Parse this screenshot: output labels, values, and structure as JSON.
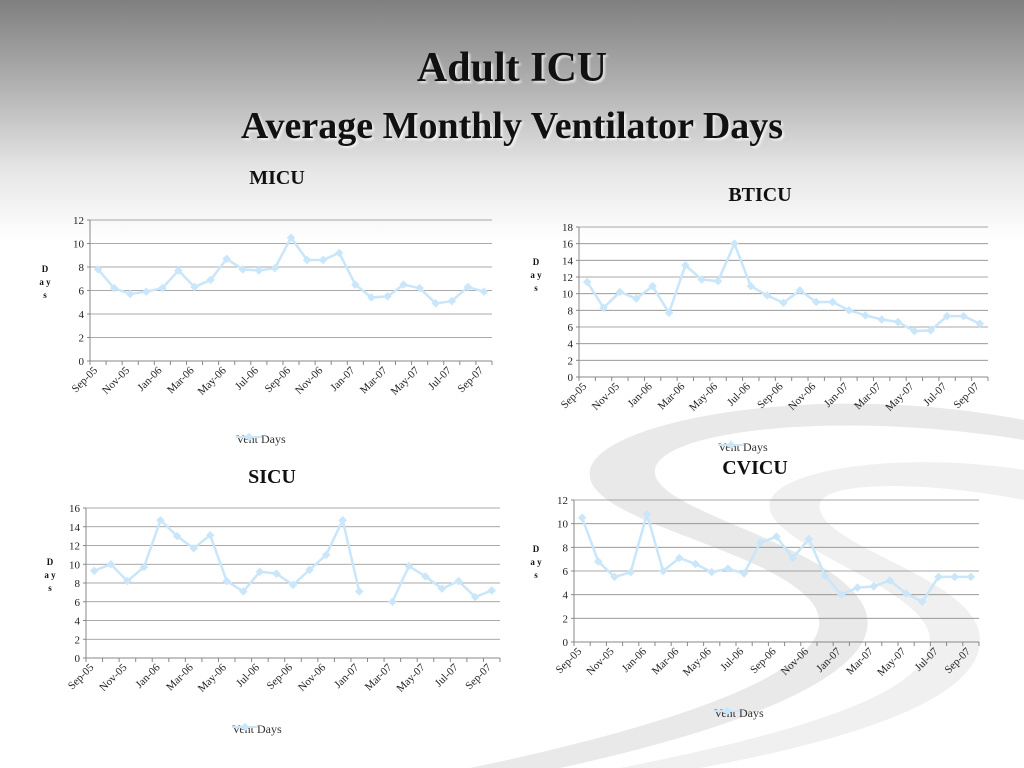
{
  "title": "Adult ICU",
  "subtitle": "Average Monthly Ventilator Days",
  "series_color": "#c9e6fa",
  "chart_data": [
    {
      "type": "line",
      "title": "MICU",
      "ylabel": "D a y s",
      "legend": "Vent Days",
      "legend_position": "bottom",
      "grid": true,
      "ylim": [
        0,
        12
      ],
      "ystep": 2,
      "categories": [
        "Sep-05",
        "Oct-05",
        "Nov-05",
        "Dec-05",
        "Jan-06",
        "Feb-06",
        "Mar-06",
        "Apr-06",
        "May-06",
        "Jun-06",
        "Jul-06",
        "Aug-06",
        "Sep-06",
        "Oct-06",
        "Nov-06",
        "Dec-06",
        "Jan-07",
        "Feb-07",
        "Mar-07",
        "Apr-07",
        "May-07",
        "Jun-07",
        "Jul-07",
        "Aug-07",
        "Sep-07"
      ],
      "tick_labels": [
        "Sep-05",
        "Nov-05",
        "Jan-06",
        "Mar-06",
        "May-06",
        "Jul-06",
        "Sep-06",
        "Nov-06",
        "Jan-07",
        "Mar-07",
        "May-07",
        "Jul-07",
        "Sep-07"
      ],
      "series": [
        {
          "name": "Vent Days",
          "values": [
            7.8,
            6.2,
            5.7,
            5.9,
            6.2,
            7.7,
            6.3,
            6.9,
            8.7,
            7.8,
            7.7,
            7.9,
            10.5,
            8.6,
            8.6,
            9.2,
            6.5,
            5.4,
            5.5,
            6.5,
            6.2,
            4.9,
            5.1,
            6.3,
            5.9
          ]
        }
      ]
    },
    {
      "type": "line",
      "title": "BTICU",
      "ylabel": "D a y s",
      "legend": "Vent Days",
      "legend_position": "bottom",
      "grid": true,
      "ylim": [
        0,
        18
      ],
      "ystep": 2,
      "categories": [
        "Sep-05",
        "Oct-05",
        "Nov-05",
        "Dec-05",
        "Jan-06",
        "Feb-06",
        "Mar-06",
        "Apr-06",
        "May-06",
        "Jun-06",
        "Jul-06",
        "Aug-06",
        "Sep-06",
        "Oct-06",
        "Nov-06",
        "Dec-06",
        "Jan-07",
        "Feb-07",
        "Mar-07",
        "Apr-07",
        "May-07",
        "Jun-07",
        "Jul-07",
        "Aug-07",
        "Sep-07"
      ],
      "tick_labels": [
        "Sep-05",
        "Nov-05",
        "Jan-06",
        "Mar-06",
        "May-06",
        "Jul-06",
        "Sep-06",
        "Nov-06",
        "Jan-07",
        "Mar-07",
        "May-07",
        "Jul-07",
        "Sep-07"
      ],
      "series": [
        {
          "name": "Vent Days",
          "values": [
            11.4,
            8.3,
            10.2,
            9.4,
            10.9,
            7.7,
            13.4,
            11.7,
            11.5,
            16.0,
            10.9,
            9.8,
            8.9,
            10.4,
            9.0,
            9.0,
            8.0,
            7.4,
            6.9,
            6.6,
            5.5,
            5.6,
            7.3,
            7.3,
            6.4
          ]
        }
      ]
    },
    {
      "type": "line",
      "title": "SICU",
      "ylabel": "D a y s",
      "legend": "Vent Days",
      "legend_position": "bottom",
      "grid": true,
      "ylim": [
        0,
        16
      ],
      "ystep": 2,
      "categories": [
        "Sep-05",
        "Oct-05",
        "Nov-05",
        "Dec-05",
        "Jan-06",
        "Feb-06",
        "Mar-06",
        "Apr-06",
        "May-06",
        "Jun-06",
        "Jul-06",
        "Aug-06",
        "Sep-06",
        "Oct-06",
        "Nov-06",
        "Dec-06",
        "Jan-07",
        "Feb-07",
        "Mar-07",
        "Apr-07",
        "May-07",
        "Jun-07",
        "Jul-07",
        "Aug-07",
        "Sep-07"
      ],
      "tick_labels": [
        "Sep-05",
        "Nov-05",
        "Jan-06",
        "Mar-06",
        "May-06",
        "Jul-06",
        "Sep-06",
        "Nov-06",
        "Jan-07",
        "Mar-07",
        "May-07",
        "Jul-07",
        "Sep-07"
      ],
      "series": [
        {
          "name": "Vent Days",
          "values": [
            9.3,
            10.0,
            8.2,
            9.7,
            14.7,
            13.0,
            11.7,
            13.1,
            8.2,
            7.1,
            9.2,
            9.0,
            7.8,
            9.4,
            11.0,
            14.7,
            7.1,
            null,
            6.0,
            9.8,
            8.7,
            7.4,
            8.2,
            6.5,
            7.2
          ]
        }
      ]
    },
    {
      "type": "line",
      "title": "CVICU",
      "ylabel": "D a y s",
      "legend": "Vent Days",
      "legend_position": "bottom",
      "grid": true,
      "ylim": [
        0,
        12
      ],
      "ystep": 2,
      "categories": [
        "Sep-05",
        "Oct-05",
        "Nov-05",
        "Dec-05",
        "Jan-06",
        "Feb-06",
        "Mar-06",
        "Apr-06",
        "May-06",
        "Jun-06",
        "Jul-06",
        "Aug-06",
        "Sep-06",
        "Oct-06",
        "Nov-06",
        "Dec-06",
        "Jan-07",
        "Feb-07",
        "Mar-07",
        "Apr-07",
        "May-07",
        "Jun-07",
        "Jul-07",
        "Aug-07",
        "Sep-07"
      ],
      "tick_labels": [
        "Sep-05",
        "Nov-05",
        "Jan-06",
        "Mar-06",
        "May-06",
        "Jul-06",
        "Sep-06",
        "Nov-06",
        "Jan-07",
        "Mar-07",
        "May-07",
        "Jul-07",
        "Sep-07"
      ],
      "series": [
        {
          "name": "Vent Days",
          "values": [
            10.5,
            6.8,
            5.5,
            5.9,
            10.8,
            6.0,
            7.1,
            6.6,
            5.9,
            6.2,
            5.8,
            8.4,
            8.9,
            7.1,
            8.7,
            5.6,
            4.0,
            4.6,
            4.7,
            5.2,
            4.1,
            3.4,
            5.5,
            5.5,
            5.5
          ]
        }
      ]
    }
  ]
}
